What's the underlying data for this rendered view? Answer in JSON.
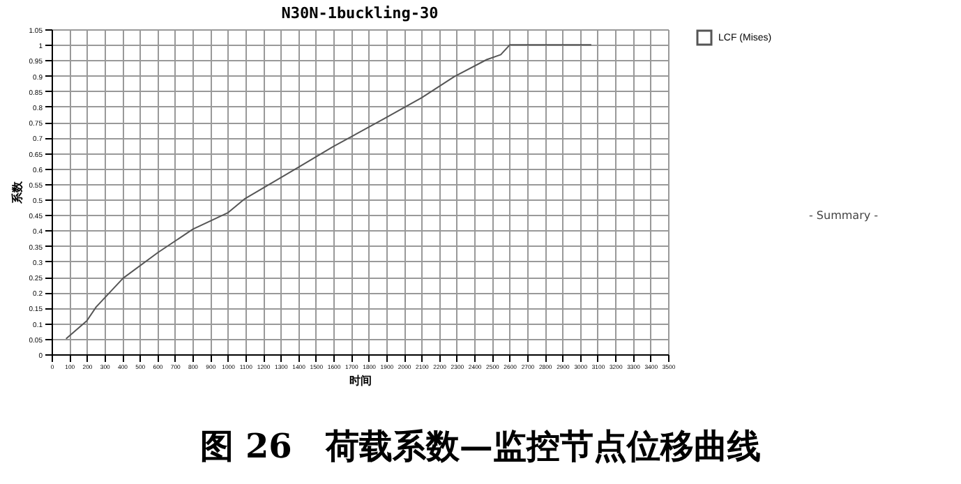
{
  "chart_data": {
    "type": "line",
    "title": "N30N-1buckling-30",
    "xlabel": "时间",
    "ylabel": "系数",
    "x": [
      82,
      200,
      253,
      406,
      604,
      802,
      1000,
      1098,
      1401,
      1599,
      1890,
      2101,
      2286,
      2470,
      2550,
      2602,
      3064
    ],
    "series": [
      {
        "name": "LCF (Mises)",
        "color": "#555555",
        "values": [
          0.05,
          0.108,
          0.153,
          0.246,
          0.329,
          0.404,
          0.457,
          0.503,
          0.604,
          0.671,
          0.762,
          0.829,
          0.897,
          0.952,
          0.968,
          1,
          1
        ]
      }
    ],
    "xlim": [
      0,
      3500
    ],
    "xticks": [
      0,
      100,
      200,
      300,
      400,
      500,
      600,
      700,
      800,
      900,
      1000,
      1100,
      1200,
      1300,
      1400,
      1500,
      1600,
      1700,
      1800,
      1900,
      2000,
      2100,
      2200,
      2300,
      2400,
      2500,
      2600,
      2700,
      2800,
      2900,
      3000,
      3100,
      3200,
      3300,
      3400,
      3500
    ],
    "ylim": [
      0,
      1.05
    ],
    "yticks": [
      0,
      0.05,
      0.1,
      0.15,
      0.2,
      0.25,
      0.3,
      0.35,
      0.4,
      0.45,
      0.5,
      0.55,
      0.6,
      0.65,
      0.7,
      0.75,
      0.8,
      0.85,
      0.9,
      0.95,
      1,
      1.05
    ],
    "grid": true,
    "legend": "top right",
    "annotations": [
      "- Summary -",
      "图 26　荷载系数—监控节点位移曲线"
    ]
  }
}
